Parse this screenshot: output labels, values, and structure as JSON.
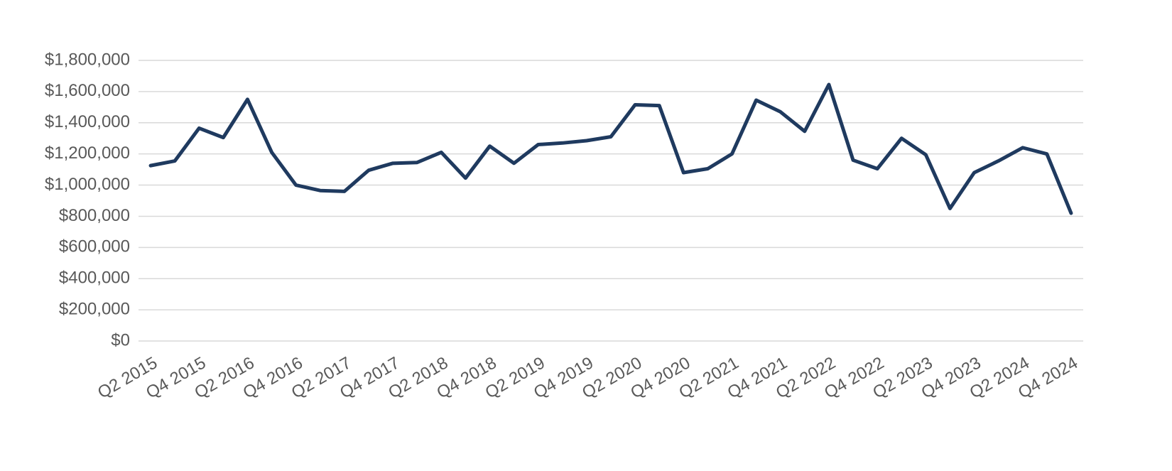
{
  "chart_data": {
    "type": "line",
    "categories": [
      "Q2 2015",
      null,
      "Q4 2015",
      null,
      "Q2 2016",
      null,
      "Q4 2016",
      null,
      "Q2 2017",
      null,
      "Q4 2017",
      null,
      "Q2 2018",
      null,
      "Q4 2018",
      null,
      "Q2 2019",
      null,
      "Q4 2019",
      null,
      "Q2 2020",
      null,
      "Q4 2020",
      null,
      "Q2 2021",
      null,
      "Q4 2021",
      null,
      "Q2 2022",
      null,
      "Q4 2022",
      null,
      "Q2 2023",
      null,
      "Q4 2023",
      null,
      "Q2 2024",
      null,
      "Q4 2024"
    ],
    "series": [
      {
        "color": "#1f3a5f",
        "values": [
          1125000,
          1155000,
          1365000,
          1305000,
          1550000,
          1210000,
          1000000,
          965000,
          960000,
          1095000,
          1140000,
          1145000,
          1210000,
          1045000,
          1250000,
          1140000,
          1260000,
          1270000,
          1285000,
          1310000,
          1515000,
          1510000,
          1080000,
          1105000,
          1200000,
          1545000,
          1470000,
          1345000,
          1645000,
          1160000,
          1105000,
          1300000,
          1195000,
          850000,
          1080000,
          1155000,
          1240000,
          1200000,
          820000
        ]
      }
    ],
    "ylim": [
      0,
      1800000
    ],
    "yticks": [
      {
        "value": 0,
        "label": "$0"
      },
      {
        "value": 200000,
        "label": "$200,000"
      },
      {
        "value": 400000,
        "label": "$400,000"
      },
      {
        "value": 600000,
        "label": "$600,000"
      },
      {
        "value": 800000,
        "label": "$800,000"
      },
      {
        "value": 1000000,
        "label": "$1,000,000"
      },
      {
        "value": 1200000,
        "label": "$1,200,000"
      },
      {
        "value": 1400000,
        "label": "$1,400,000"
      },
      {
        "value": 1600000,
        "label": "$1,600,000"
      },
      {
        "value": 1800000,
        "label": "$1,800,000"
      }
    ],
    "grid": true
  }
}
